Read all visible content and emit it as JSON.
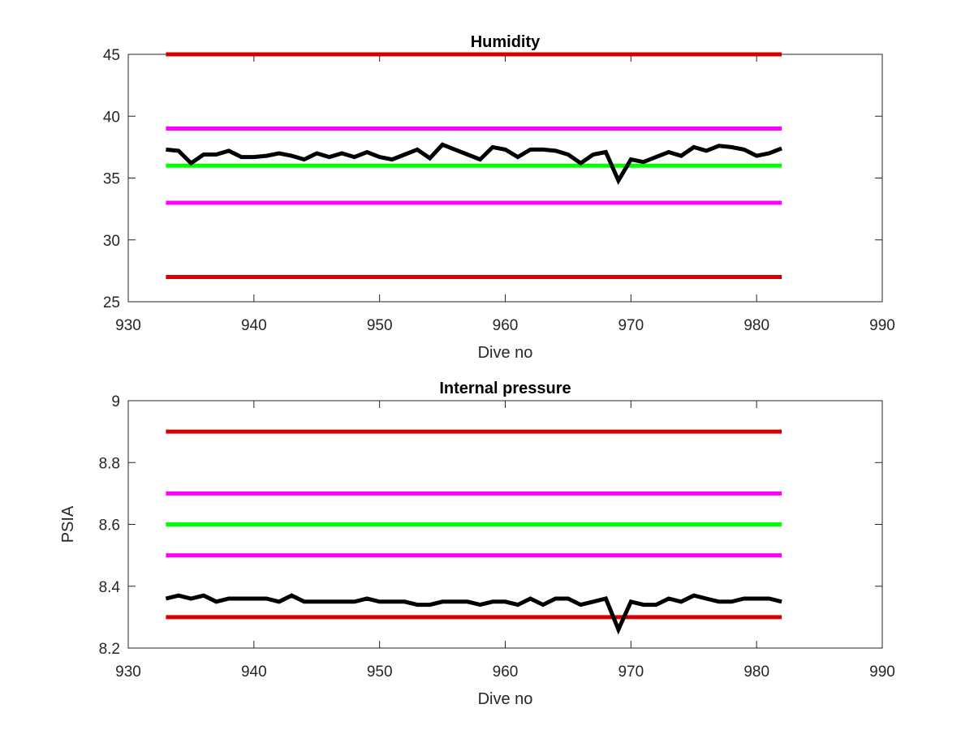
{
  "chart_data": [
    {
      "type": "line",
      "title": "Humidity",
      "xlabel": "Dive no",
      "ylabel": "",
      "xlim": [
        930,
        990
      ],
      "ylim": [
        25,
        45
      ],
      "xticks": [
        930,
        940,
        950,
        960,
        970,
        980,
        990
      ],
      "yticks": [
        25,
        30,
        35,
        40,
        45
      ],
      "grid": false,
      "series": [
        {
          "color": "#d40000",
          "x": [
            933,
            982
          ],
          "values": [
            45,
            45
          ]
        },
        {
          "color": "#ff00ff",
          "x": [
            933,
            982
          ],
          "values": [
            39,
            39
          ]
        },
        {
          "color": "#00ff00",
          "x": [
            933,
            982
          ],
          "values": [
            36,
            36
          ]
        },
        {
          "color": "#ff00ff",
          "x": [
            933,
            982
          ],
          "values": [
            33,
            33
          ]
        },
        {
          "color": "#d40000",
          "x": [
            933,
            982
          ],
          "values": [
            27,
            27
          ]
        },
        {
          "color": "#000000",
          "x": [
            933,
            934,
            935,
            936,
            937,
            938,
            939,
            940,
            941,
            942,
            943,
            944,
            945,
            946,
            947,
            948,
            949,
            950,
            951,
            952,
            953,
            954,
            955,
            956,
            957,
            958,
            959,
            960,
            961,
            962,
            963,
            964,
            965,
            966,
            967,
            968,
            969,
            970,
            971,
            972,
            973,
            974,
            975,
            976,
            977,
            978,
            979,
            980,
            981,
            982
          ],
          "values": [
            37.3,
            37.2,
            36.2,
            36.9,
            36.9,
            37.2,
            36.7,
            36.7,
            36.8,
            37.0,
            36.8,
            36.5,
            37.0,
            36.7,
            37.0,
            36.7,
            37.1,
            36.7,
            36.5,
            36.9,
            37.3,
            36.6,
            37.7,
            37.3,
            36.9,
            36.5,
            37.5,
            37.3,
            36.7,
            37.3,
            37.3,
            37.2,
            36.9,
            36.2,
            36.9,
            37.1,
            34.8,
            36.5,
            36.3,
            36.7,
            37.1,
            36.8,
            37.5,
            37.2,
            37.6,
            37.5,
            37.3,
            36.8,
            37.0,
            37.4
          ]
        }
      ]
    },
    {
      "type": "line",
      "title": "Internal pressure",
      "xlabel": "Dive no",
      "ylabel": "PSIA",
      "xlim": [
        930,
        990
      ],
      "ylim": [
        8.2,
        9
      ],
      "xticks": [
        930,
        940,
        950,
        960,
        970,
        980,
        990
      ],
      "yticks": [
        8.2,
        8.4,
        8.6,
        8.8,
        9
      ],
      "ytick_labels": [
        "8.2",
        "8.4",
        "8.6",
        "8.8",
        "9"
      ],
      "grid": false,
      "series": [
        {
          "color": "#d40000",
          "x": [
            933,
            982
          ],
          "values": [
            8.9,
            8.9
          ]
        },
        {
          "color": "#ff00ff",
          "x": [
            933,
            982
          ],
          "values": [
            8.7,
            8.7
          ]
        },
        {
          "color": "#00ff00",
          "x": [
            933,
            982
          ],
          "values": [
            8.6,
            8.6
          ]
        },
        {
          "color": "#ff00ff",
          "x": [
            933,
            982
          ],
          "values": [
            8.5,
            8.5
          ]
        },
        {
          "color": "#d40000",
          "x": [
            933,
            982
          ],
          "values": [
            8.3,
            8.3
          ]
        },
        {
          "color": "#000000",
          "x": [
            933,
            934,
            935,
            936,
            937,
            938,
            939,
            940,
            941,
            942,
            943,
            944,
            945,
            946,
            947,
            948,
            949,
            950,
            951,
            952,
            953,
            954,
            955,
            956,
            957,
            958,
            959,
            960,
            961,
            962,
            963,
            964,
            965,
            966,
            967,
            968,
            969,
            970,
            971,
            972,
            973,
            974,
            975,
            976,
            977,
            978,
            979,
            980,
            981,
            982
          ],
          "values": [
            8.36,
            8.37,
            8.36,
            8.37,
            8.35,
            8.36,
            8.36,
            8.36,
            8.36,
            8.35,
            8.37,
            8.35,
            8.35,
            8.35,
            8.35,
            8.35,
            8.36,
            8.35,
            8.35,
            8.35,
            8.34,
            8.34,
            8.35,
            8.35,
            8.35,
            8.34,
            8.35,
            8.35,
            8.34,
            8.36,
            8.34,
            8.36,
            8.36,
            8.34,
            8.35,
            8.36,
            8.26,
            8.35,
            8.34,
            8.34,
            8.36,
            8.35,
            8.37,
            8.36,
            8.35,
            8.35,
            8.36,
            8.36,
            8.36,
            8.35
          ]
        }
      ]
    }
  ]
}
